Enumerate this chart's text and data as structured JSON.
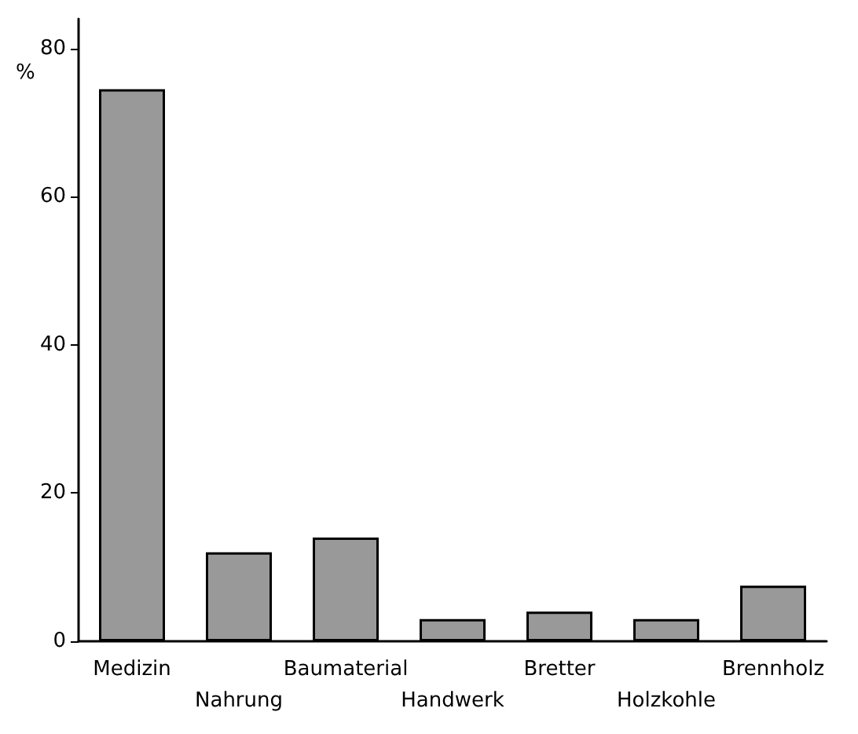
{
  "chart_data": {
    "type": "bar",
    "ylabel": "%",
    "categories": [
      "Medizin",
      "Nahrung",
      "Baumaterial",
      "Handwerk",
      "Bretter",
      "Holzkohle",
      "Brennholz"
    ],
    "values": [
      74.5,
      12,
      14,
      3,
      4,
      3,
      7.5
    ],
    "color": "#999999",
    "ylim": [
      0,
      84
    ],
    "yticks": [
      0,
      20,
      40,
      60,
      80
    ],
    "grid": false
  }
}
